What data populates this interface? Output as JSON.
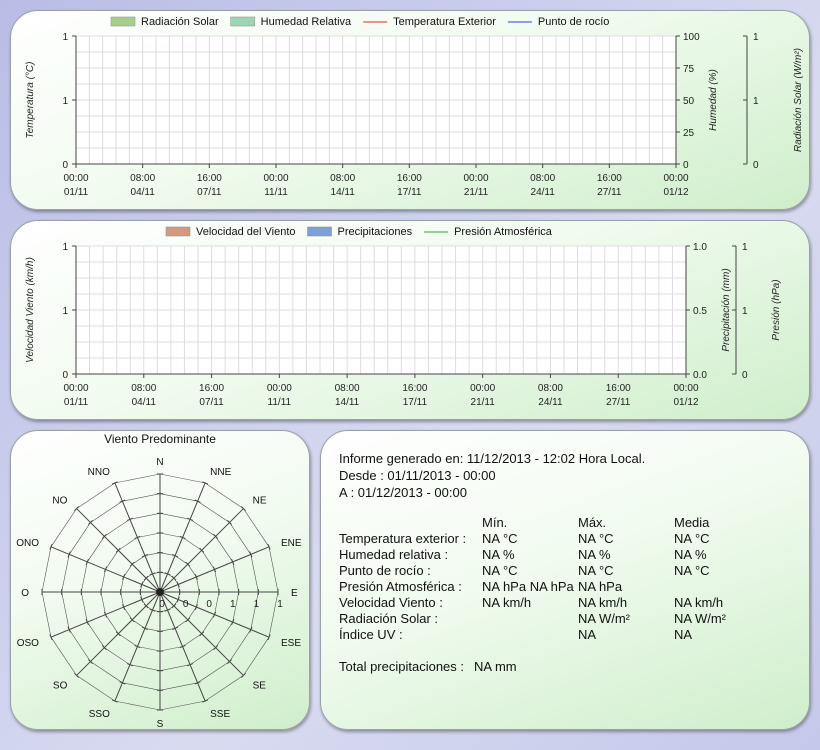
{
  "chart_data": [
    {
      "type": "line",
      "legend": [
        {
          "label": "Radiación Solar",
          "kind": "area",
          "color": "#a6d08a"
        },
        {
          "label": "Humedad Relativa",
          "kind": "area",
          "color": "#9ad7b4"
        },
        {
          "label": "Temperatura Exterior",
          "kind": "line",
          "color": "#e03020"
        },
        {
          "label": "Punto de rocío",
          "kind": "line",
          "color": "#2040e0"
        }
      ],
      "legend_position": "top",
      "ylabel_left": "Temperatura (°C)",
      "ylabel_right": "Humedad (%)",
      "ylabel_right2": "Radiación Solar (W/m²)",
      "yticks_left": [
        "0",
        "1",
        "1"
      ],
      "yticks_right": [
        "0",
        "25",
        "50",
        "75",
        "100"
      ],
      "yticks_right2": [
        "0",
        "1",
        "1"
      ],
      "xticks": [
        {
          "time": "00:00",
          "date": "01/11"
        },
        {
          "time": "08:00",
          "date": "04/11"
        },
        {
          "time": "16:00",
          "date": "07/11"
        },
        {
          "time": "00:00",
          "date": "11/11"
        },
        {
          "time": "08:00",
          "date": "14/11"
        },
        {
          "time": "16:00",
          "date": "17/11"
        },
        {
          "time": "00:00",
          "date": "21/11"
        },
        {
          "time": "08:00",
          "date": "24/11"
        },
        {
          "time": "16:00",
          "date": "27/11"
        },
        {
          "time": "00:00",
          "date": "01/12"
        }
      ],
      "series": [],
      "grid": true
    },
    {
      "type": "line",
      "legend": [
        {
          "label": "Velocidad del Viento",
          "kind": "area",
          "color": "#d49a80"
        },
        {
          "label": "Precipitaciones",
          "kind": "area",
          "color": "#7f9fd8"
        },
        {
          "label": "Presión Atmosférica",
          "kind": "line",
          "color": "#30a030"
        }
      ],
      "legend_position": "top",
      "ylabel_left": "Velocidad Viento (km/h)",
      "ylabel_right": "Precipitación (mm)",
      "ylabel_right2": "Presión (hPa)",
      "yticks_left": [
        "0",
        "1",
        "1"
      ],
      "yticks_right": [
        "0.0",
        "0.5",
        "1.0"
      ],
      "yticks_right2": [
        "0",
        "1",
        "1"
      ],
      "xticks": [
        {
          "time": "00:00",
          "date": "01/11"
        },
        {
          "time": "08:00",
          "date": "04/11"
        },
        {
          "time": "16:00",
          "date": "07/11"
        },
        {
          "time": "00:00",
          "date": "11/11"
        },
        {
          "time": "08:00",
          "date": "14/11"
        },
        {
          "time": "16:00",
          "date": "17/11"
        },
        {
          "time": "00:00",
          "date": "21/11"
        },
        {
          "time": "08:00",
          "date": "24/11"
        },
        {
          "time": "16:00",
          "date": "27/11"
        },
        {
          "time": "00:00",
          "date": "01/12"
        }
      ],
      "series": [],
      "grid": true
    },
    {
      "type": "radar",
      "title": "Viento Predominante",
      "directions": [
        "N",
        "NNE",
        "NE",
        "ENE",
        "E",
        "ESE",
        "SE",
        "SSE",
        "S",
        "SSO",
        "SO",
        "OSO",
        "O",
        "ONO",
        "NO",
        "NNO"
      ],
      "radial_ticks": [
        "0",
        "0",
        "0",
        "1",
        "1",
        "1"
      ],
      "values": [
        0,
        0,
        0,
        0,
        0,
        0,
        0,
        0,
        0,
        0,
        0,
        0,
        0,
        0,
        0,
        0
      ]
    }
  ],
  "report": {
    "generated": "Informe generado en: 11/12/2013 - 12:02 Hora Local.",
    "from": "Desde : 01/11/2013 - 00:00",
    "to": "A : 01/12/2013 - 00:00",
    "headers": {
      "min": "Mín.",
      "max": "Máx.",
      "avg": "Media"
    },
    "rows": [
      {
        "label": "Temperatura exterior :",
        "min": "NA °C",
        "max": "NA °C",
        "avg": "NA °C"
      },
      {
        "label": "Humedad relativa :",
        "min": "NA %",
        "max": "NA %",
        "avg": "NA %"
      },
      {
        "label": "Punto de rocío :",
        "min": "NA °C",
        "max": "NA °C",
        "avg": "NA °C"
      },
      {
        "label": "Presión Atmosférica :",
        "min": "NA hPa NA hPa",
        "max": "NA hPa",
        "avg": ""
      },
      {
        "label": "Velocidad Viento :",
        "min": "NA km/h",
        "max": "NA km/h",
        "avg": "NA km/h"
      },
      {
        "label": "Radiación Solar :",
        "min": "",
        "max": "NA W/m²",
        "avg": "NA W/m²"
      },
      {
        "label": "Índice UV :",
        "min": "",
        "max": "NA",
        "avg": "NA"
      }
    ],
    "total_label": "Total precipitaciones :",
    "total_value": "NA mm"
  }
}
